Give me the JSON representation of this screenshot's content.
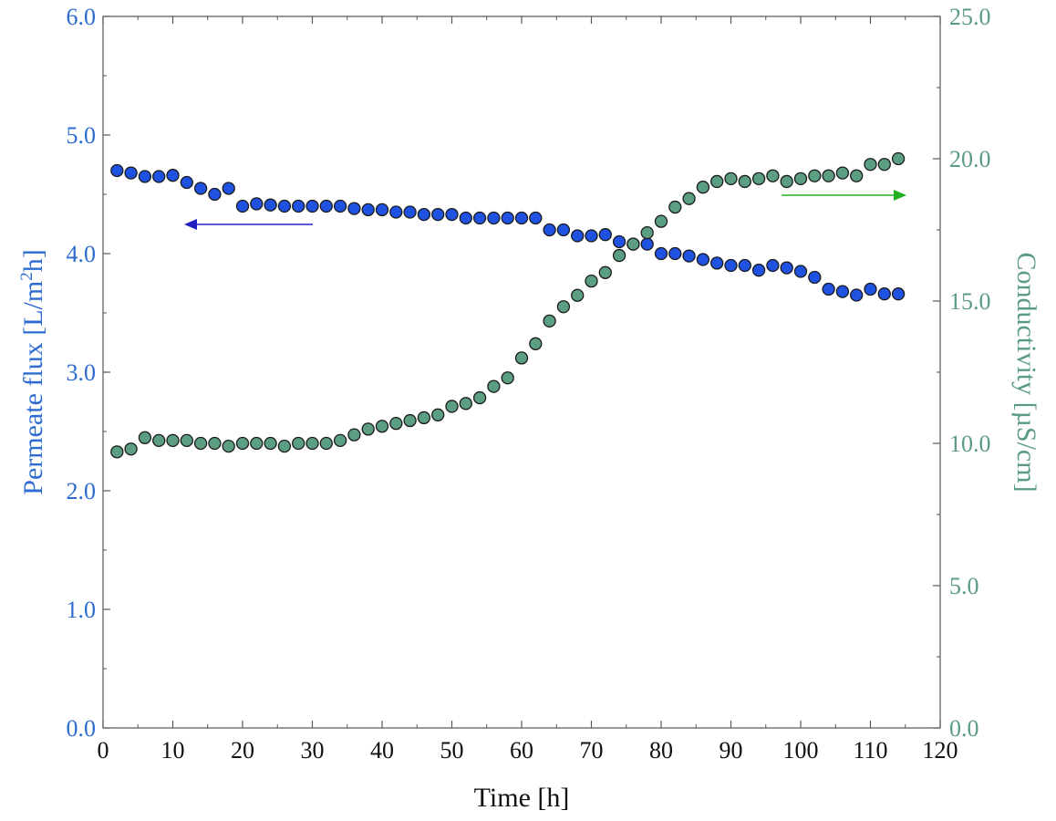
{
  "chart_data": {
    "type": "scatter",
    "title": "",
    "xlabel": "Time [h]",
    "xlim": [
      0,
      120
    ],
    "x_ticks": [
      "0",
      "10",
      "20",
      "30",
      "40",
      "50",
      "60",
      "70",
      "80",
      "90",
      "100",
      "110",
      "120"
    ],
    "grid": false,
    "left_axis": {
      "label_main": "Permeate flux [L/m",
      "label_sup": "2",
      "label_end": "h]",
      "ylim": [
        0,
        6
      ],
      "ticks": [
        "0.0",
        "1.0",
        "2.0",
        "3.0",
        "4.0",
        "5.0",
        "6.0"
      ],
      "color": "#2d6bd1"
    },
    "right_axis": {
      "label": "Conductivity [µS/cm]",
      "ylim": [
        0,
        25
      ],
      "ticks": [
        "0.0",
        "5.0",
        "10.0",
        "15.0",
        "20.0",
        "25.0"
      ],
      "color": "#5a9c82"
    },
    "series": [
      {
        "name": "Permeate flux",
        "axis": "left",
        "color": "#1f52e0",
        "x": [
          2,
          4,
          6,
          8,
          10,
          12,
          14,
          16,
          18,
          20,
          22,
          24,
          26,
          28,
          30,
          32,
          34,
          36,
          38,
          40,
          42,
          44,
          46,
          48,
          50,
          52,
          54,
          56,
          58,
          60,
          62,
          64,
          66,
          68,
          70,
          72,
          74,
          76,
          78,
          80,
          82,
          84,
          86,
          88,
          90,
          92,
          94,
          96,
          98,
          100,
          102,
          104,
          106,
          108,
          110,
          112,
          114
        ],
        "y": [
          4.7,
          4.68,
          4.65,
          4.65,
          4.66,
          4.6,
          4.55,
          4.5,
          4.55,
          4.4,
          4.42,
          4.41,
          4.4,
          4.4,
          4.4,
          4.4,
          4.4,
          4.38,
          4.37,
          4.37,
          4.35,
          4.35,
          4.33,
          4.33,
          4.33,
          4.3,
          4.3,
          4.3,
          4.3,
          4.3,
          4.3,
          4.2,
          4.2,
          4.15,
          4.15,
          4.16,
          4.1,
          4.08,
          4.08,
          4.0,
          4.0,
          3.98,
          3.95,
          3.92,
          3.9,
          3.9,
          3.86,
          3.9,
          3.88,
          3.85,
          3.8,
          3.7,
          3.68,
          3.65,
          3.7,
          3.66,
          3.66
        ]
      },
      {
        "name": "Conductivity",
        "axis": "right",
        "color": "#5c9e82",
        "x": [
          2,
          4,
          6,
          8,
          10,
          12,
          14,
          16,
          18,
          20,
          22,
          24,
          26,
          28,
          30,
          32,
          34,
          36,
          38,
          40,
          42,
          44,
          46,
          48,
          50,
          52,
          54,
          56,
          58,
          60,
          62,
          64,
          66,
          68,
          70,
          72,
          74,
          76,
          78,
          80,
          82,
          84,
          86,
          88,
          90,
          92,
          94,
          96,
          98,
          100,
          102,
          104,
          106,
          108,
          110,
          112,
          114
        ],
        "y": [
          9.7,
          9.8,
          10.2,
          10.1,
          10.1,
          10.1,
          10.0,
          10.0,
          9.9,
          10.0,
          10.0,
          10.0,
          9.9,
          10.0,
          10.0,
          10.0,
          10.1,
          10.3,
          10.5,
          10.6,
          10.7,
          10.8,
          10.9,
          11.0,
          11.3,
          11.4,
          11.6,
          12.0,
          12.3,
          13.0,
          13.5,
          14.3,
          14.8,
          15.2,
          15.7,
          16.0,
          16.6,
          17.0,
          17.4,
          17.8,
          18.3,
          18.6,
          19.0,
          19.2,
          19.3,
          19.2,
          19.3,
          19.4,
          19.2,
          19.3,
          19.4,
          19.4,
          19.5,
          19.4,
          19.8,
          19.8,
          20.0
        ]
      }
    ],
    "annotations": [
      {
        "type": "arrow",
        "direction": "left",
        "points_to": "left_axis",
        "color": "#2020c0"
      },
      {
        "type": "arrow",
        "direction": "right",
        "points_to": "right_axis",
        "color": "#22b022"
      }
    ]
  }
}
